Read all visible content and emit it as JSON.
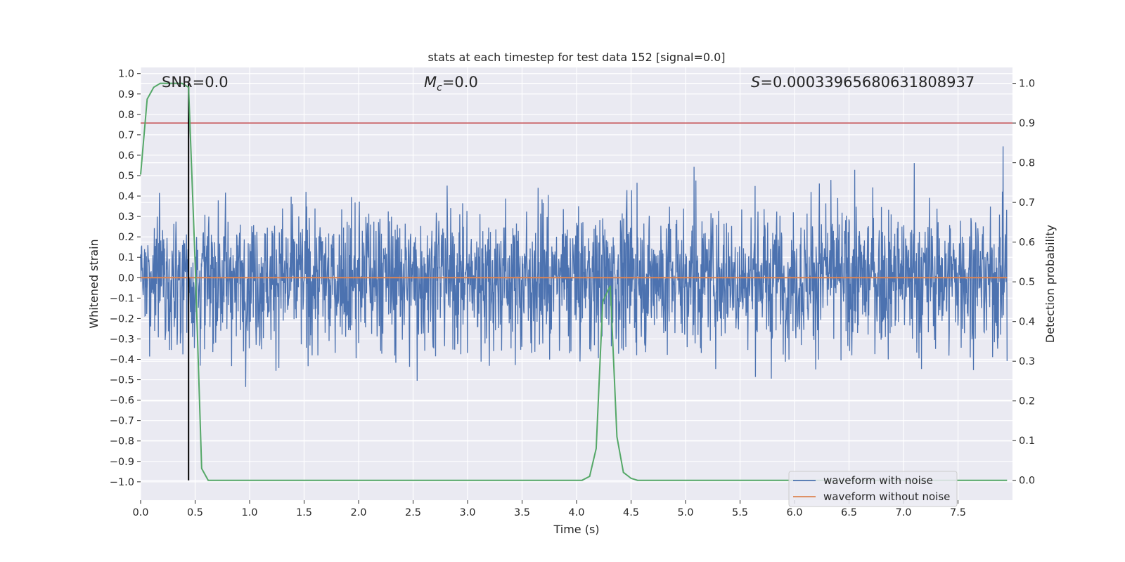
{
  "chart_data": {
    "type": "line",
    "title": "stats at each timestep for test data 152 [signal=0.0]",
    "xlabel": "Time (s)",
    "ylabel": "Whitened strain",
    "y2label": "Detection probability",
    "xlim": [
      0.0,
      8.0
    ],
    "ylim": [
      -1.09,
      1.03
    ],
    "y2lim": [
      -0.05,
      1.04
    ],
    "x_ticks": [
      "0.0",
      "0.5",
      "1.0",
      "1.5",
      "2.0",
      "2.5",
      "3.0",
      "3.5",
      "4.0",
      "4.5",
      "5.0",
      "5.5",
      "6.0",
      "6.5",
      "7.0",
      "7.5"
    ],
    "y_ticks": [
      "1.0",
      "0.9",
      "0.8",
      "0.7",
      "0.6",
      "0.5",
      "0.4",
      "0.3",
      "0.2",
      "0.1",
      "0.0",
      "−0.1",
      "−0.2",
      "−0.3",
      "−0.4",
      "−0.5",
      "−0.6",
      "−0.7",
      "−0.8",
      "−0.9",
      "−1.0"
    ],
    "y2_ticks": [
      "1.0",
      "0.9",
      "0.8",
      "0.7",
      "0.6",
      "0.5",
      "0.4",
      "0.3",
      "0.2",
      "0.1",
      "0.0"
    ],
    "annotations": {
      "snr": "SNR=0.0",
      "mc_symbol": "M",
      "mc_sub": "c",
      "mc_value": "=0.0",
      "s_symbol": "S",
      "s_value": "=0.00033965680631808937"
    },
    "threshold_y2": 0.9,
    "marker_x": 0.44,
    "noise_amplitude_band": [
      -0.45,
      0.45
    ],
    "series": [
      {
        "name": "waveform with noise",
        "color": "#4c72b0",
        "kind": "noise-trace",
        "y_range": [
          -0.96,
          0.93
        ]
      },
      {
        "name": "waveform without noise",
        "color": "#dd8452",
        "x": [
          0.0,
          7.95
        ],
        "y": [
          0.0,
          0.0
        ]
      },
      {
        "name": "",
        "axis": "right",
        "color": "#55a868",
        "x": [
          0.0,
          0.06,
          0.12,
          0.18,
          0.25,
          0.31,
          0.38,
          0.44,
          0.5,
          0.56,
          0.62,
          0.69,
          0.75,
          1.0,
          2.0,
          3.0,
          4.0,
          4.05,
          4.12,
          4.18,
          4.24,
          4.31,
          4.37,
          4.43,
          4.5,
          4.56,
          4.62,
          5.0,
          6.0,
          7.0,
          7.95
        ],
        "y": [
          0.77,
          0.96,
          0.99,
          1.0,
          1.0,
          1.0,
          1.0,
          0.99,
          0.55,
          0.03,
          0.0,
          0.0,
          0.0,
          0.0,
          0.0,
          0.0,
          0.0,
          0.0,
          0.01,
          0.08,
          0.45,
          0.49,
          0.11,
          0.02,
          0.005,
          0.0,
          0.0,
          0.0,
          0.0,
          0.0,
          0.0
        ]
      }
    ],
    "threshold_color": "#c44e52",
    "marker_color": "#000000",
    "legend_position": "lower-right"
  }
}
